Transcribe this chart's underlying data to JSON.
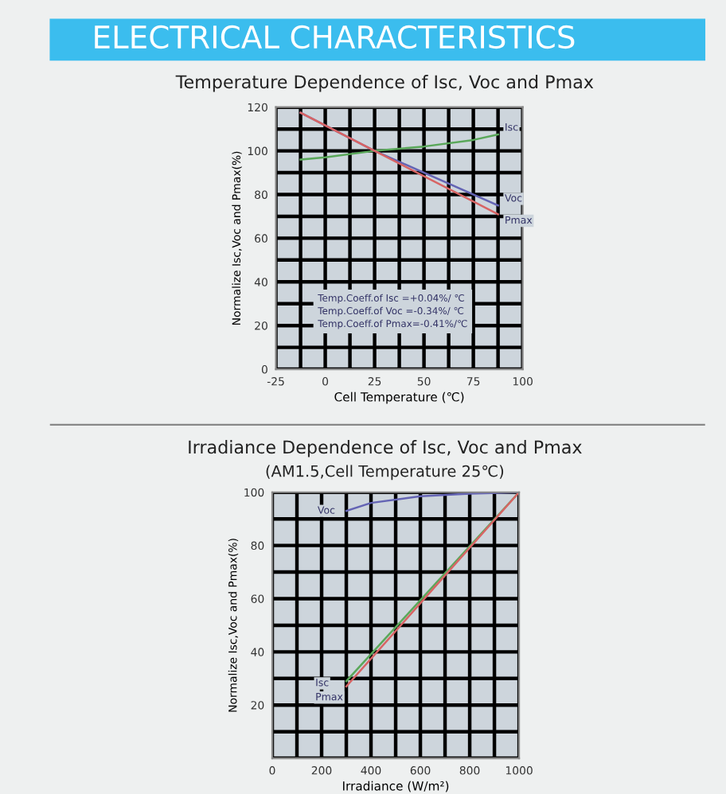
{
  "chart_data": [
    {
      "type": "line",
      "title": "ELECTRICAL CHARACTERISTICS",
      "subtitle": "Temperature Dependence of Isc, Voc and Pmax",
      "xlabel": "Cell Temperature (℃)",
      "ylabel": "Normalize Isc,Voc and Pmax(%)",
      "series": [
        {
          "name": "Isc",
          "color": "#5aa85a",
          "x": [
            -12.5,
            0,
            25,
            50,
            75,
            87.5
          ],
          "values": [
            96,
            97,
            100,
            102,
            105,
            107.5
          ]
        },
        {
          "name": "Voc",
          "color": "#6464b4",
          "x": [
            -12.5,
            25,
            87.5
          ],
          "values": [
            117.5,
            100,
            75
          ]
        },
        {
          "name": "Pmax",
          "color": "#d86464",
          "x": [
            -12.5,
            25,
            87.5
          ],
          "values": [
            117.5,
            100,
            71
          ]
        }
      ],
      "xlim": [
        -25,
        100
      ],
      "xticks": [
        -25,
        0,
        25,
        50,
        75,
        100
      ],
      "ylim": [
        0,
        120
      ],
      "yticks": [
        0,
        20,
        40,
        60,
        80,
        100,
        120
      ],
      "grid": true,
      "legend": false,
      "marker": "none",
      "line_style": "solid",
      "annotations": [
        "Temp.Coeff.of Isc =+0.04%/ ℃",
        "Temp.Coeff.of Voc =-0.34%/ ℃",
        "Temp.Coeff.of Pmax=-0.41%/℃"
      ]
    },
    {
      "type": "line",
      "title": "Irradiance Dependence of Isc, Voc and Pmax",
      "subtitle": "(AM1.5,Cell Temperature 25℃)",
      "xlabel": "Irradiance (W/m²)",
      "ylabel": "Normalize Isc,Voc and Pmax(%)",
      "series": [
        {
          "name": "Voc",
          "color": "#6464b4",
          "x": [
            300,
            400,
            600,
            800,
            1000
          ],
          "values": [
            93,
            96,
            98.5,
            99.5,
            100
          ]
        },
        {
          "name": "Isc",
          "color": "#5aa85a",
          "x": [
            300,
            1000
          ],
          "values": [
            29,
            100
          ]
        },
        {
          "name": "Pmax",
          "color": "#d86464",
          "x": [
            300,
            1000
          ],
          "values": [
            27,
            100
          ]
        }
      ],
      "xlim": [
        0,
        1000
      ],
      "xticks": [
        0,
        200,
        400,
        600,
        800,
        1000
      ],
      "ylim": [
        0,
        100
      ],
      "yticks": [
        20,
        40,
        60,
        80,
        100
      ],
      "grid": true,
      "legend": false,
      "marker": "none",
      "line_style": "solid"
    }
  ]
}
